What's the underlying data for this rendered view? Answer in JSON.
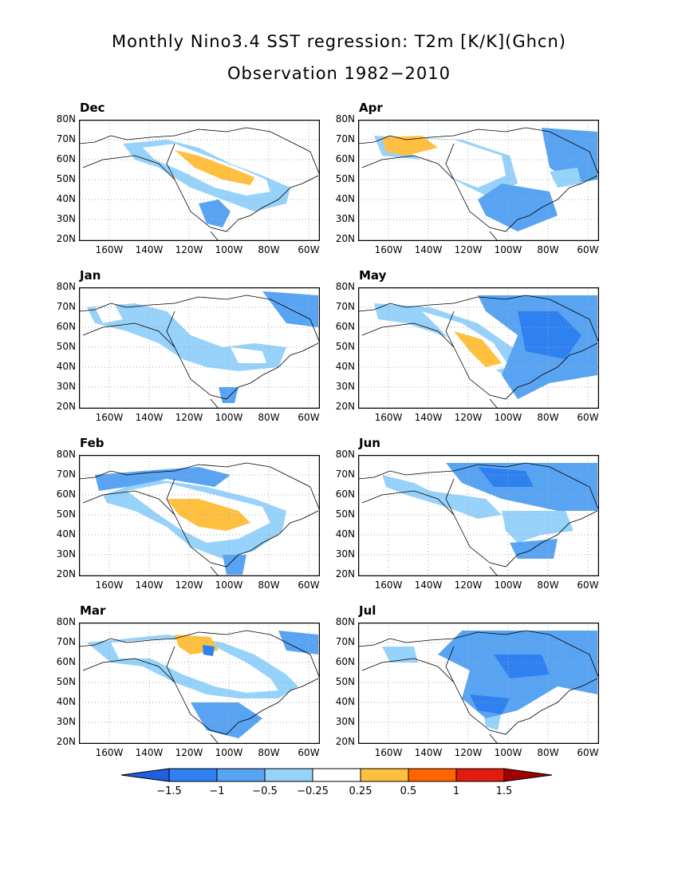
{
  "title": "Monthly Nino3.4 SST regression: T2m [K/K](Ghcn)",
  "subtitle": "Observation 1982−2010",
  "y_ticks": [
    "80N",
    "70N",
    "60N",
    "50N",
    "40N",
    "30N",
    "20N"
  ],
  "x_ticks": [
    "160W",
    "140W",
    "120W",
    "100W",
    "80W",
    "60W"
  ],
  "colorbar": {
    "labels": [
      "−1.5",
      "−1",
      "−0.5",
      "−0.25",
      "0.25",
      "0.5",
      "1",
      "1.5"
    ],
    "colors": [
      "#1f60e0",
      "#2f80f0",
      "#59a4f2",
      "#96d2fa",
      "#ffffff",
      "#ffc040",
      "#ff6400",
      "#e01c0c",
      "#a00000"
    ]
  },
  "panels": [
    {
      "label": "Dec"
    },
    {
      "label": "Apr"
    },
    {
      "label": "Jan"
    },
    {
      "label": "May"
    },
    {
      "label": "Feb"
    },
    {
      "label": "Jun"
    },
    {
      "label": "Mar"
    },
    {
      "label": "Jul"
    }
  ]
}
